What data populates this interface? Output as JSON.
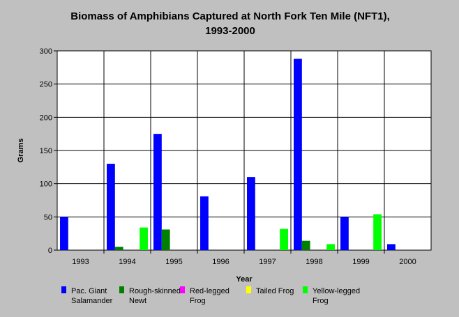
{
  "chart_data": {
    "type": "bar",
    "title_line1": "Biomass of Amphibians Captured at North Fork Ten Mile (NFT1),",
    "title_line2": "1993-2000",
    "xlabel": "Year",
    "ylabel": "Grams",
    "ylim": [
      0,
      300
    ],
    "yticks": [
      "0",
      "50",
      "100",
      "150",
      "200",
      "250",
      "300"
    ],
    "grid": true,
    "legend_position": "bottom",
    "categories": [
      "1993",
      "1994",
      "1995",
      "1996",
      "1997",
      "1998",
      "1999",
      "2000"
    ],
    "series": [
      {
        "name": "Pac. Giant Salamander",
        "legend_lines": [
          "Pac. Giant",
          "Salamander"
        ],
        "color": "#0000ff",
        "values": [
          50,
          130,
          175,
          81,
          110,
          288,
          50,
          9
        ]
      },
      {
        "name": "Rough-skinned Newt",
        "legend_lines": [
          "Rough-skinned",
          "Newt"
        ],
        "color": "#008000",
        "values": [
          0,
          5,
          31,
          0,
          0,
          14,
          0,
          0
        ]
      },
      {
        "name": "Red-legged Frog",
        "legend_lines": [
          "Red-legged",
          "Frog"
        ],
        "color": "#ff00ff",
        "values": [
          0,
          0,
          0,
          0,
          0,
          0,
          0,
          0
        ]
      },
      {
        "name": "Tailed Frog",
        "legend_lines": [
          "Tailed Frog"
        ],
        "color": "#ffff00",
        "values": [
          0,
          0,
          0,
          0,
          0,
          0,
          0,
          0
        ]
      },
      {
        "name": "Yellow-legged Frog",
        "legend_lines": [
          "Yellow-legged",
          "Frog"
        ],
        "color": "#00ff00",
        "values": [
          0,
          34,
          0,
          0,
          32,
          9,
          54,
          0
        ]
      }
    ]
  }
}
